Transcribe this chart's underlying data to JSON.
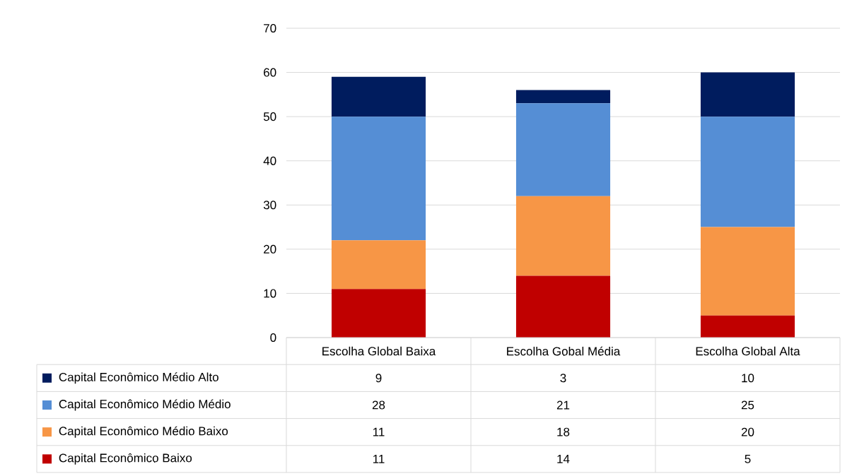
{
  "chart_data": {
    "type": "bar",
    "stacked": true,
    "categories": [
      "Escolha Global Baixa",
      "Escolha Gobal Média",
      "Escolha Global Alta"
    ],
    "series": [
      {
        "name": "Capital Econômico Baixo",
        "color": "#c00000",
        "values": [
          11,
          14,
          5
        ]
      },
      {
        "name": "Capital Econômico Médio Baixo",
        "color": "#f79646",
        "values": [
          11,
          18,
          20
        ]
      },
      {
        "name": "Capital Econômico Médio Médio",
        "color": "#558ed5",
        "values": [
          28,
          21,
          25
        ]
      },
      {
        "name": "Capital Econômico Médio Alto",
        "color": "#001c5e",
        "values": [
          9,
          3,
          10
        ]
      }
    ],
    "ylim": [
      0,
      70
    ],
    "yticks": [
      0,
      10,
      20,
      30,
      40,
      50,
      60,
      70
    ],
    "grid": "y",
    "legend": "bottom",
    "data_labels": true
  }
}
